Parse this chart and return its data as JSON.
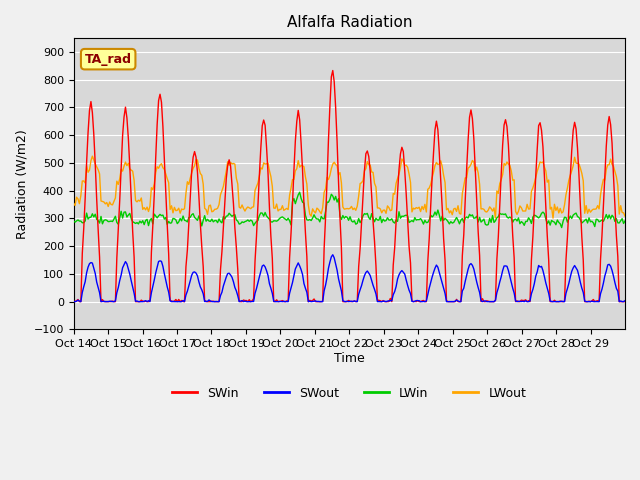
{
  "title": "Alfalfa Radiation",
  "xlabel": "Time",
  "ylabel": "Radiation (W/m2)",
  "ylim": [
    -100,
    950
  ],
  "yticks": [
    -100,
    0,
    100,
    200,
    300,
    400,
    500,
    600,
    700,
    800,
    900
  ],
  "xtick_labels": [
    "Oct 14",
    "Oct 15",
    "Oct 16",
    "Oct 17",
    "Oct 18",
    "Oct 19",
    "Oct 20",
    "Oct 21",
    "Oct 22",
    "Oct 23",
    "Oct 24",
    "Oct 25",
    "Oct 26",
    "Oct 27",
    "Oct 28",
    "Oct 29"
  ],
  "legend_labels": [
    "SWin",
    "SWout",
    "LWin",
    "LWout"
  ],
  "legend_colors": [
    "#ff0000",
    "#0000ff",
    "#00cc00",
    "#ffa500"
  ],
  "swin_color": "#ff0000",
  "swout_color": "#0000ff",
  "lwin_color": "#00cc00",
  "lwout_color": "#ffa500",
  "fig_bg_color": "#f0f0f0",
  "plot_bg_color": "#d8d8d8",
  "grid_color": "#ffffff",
  "annotation_label": "TA_rad",
  "annotation_fg": "#8b0000",
  "annotation_bg": "#ffff99",
  "annotation_border": "#cc8800",
  "n_days": 16,
  "hours_per_day": 24,
  "swin_peaks": [
    720,
    700,
    750,
    545,
    510,
    660,
    680,
    830,
    550,
    560,
    640,
    690,
    660,
    650,
    650,
    660
  ]
}
